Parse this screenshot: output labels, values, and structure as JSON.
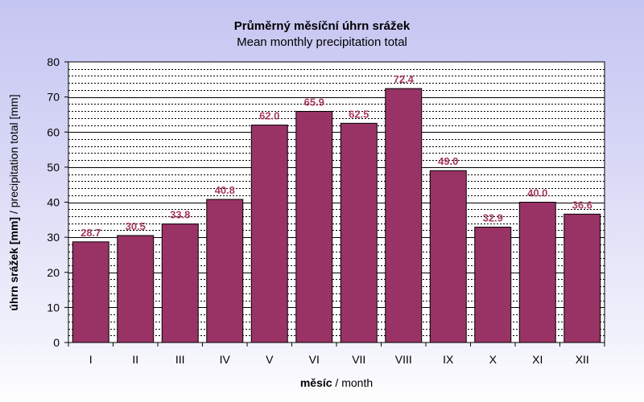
{
  "chart_data": {
    "type": "bar",
    "title": "Průměrný měsíční úhrn srážek",
    "subtitle": "Mean monthly precipitation total",
    "xlabel": {
      "bold": "měsíc",
      "normal": " / month"
    },
    "ylabel": {
      "bold": "úhrn srážek [mm]",
      "normal": " / precipitation total [mm]"
    },
    "categories": [
      "I",
      "II",
      "III",
      "IV",
      "V",
      "VI",
      "VII",
      "VIII",
      "IX",
      "X",
      "XI",
      "XII"
    ],
    "values": [
      28.7,
      30.5,
      33.8,
      40.8,
      62.0,
      65.9,
      62.5,
      72.4,
      49.0,
      32.9,
      40.0,
      36.6
    ],
    "data_labels": [
      "28.7",
      "30.5",
      "33.8",
      "40.8",
      "62.0",
      "65.9",
      "62.5",
      "72.4",
      "49.0",
      "32.9",
      "40.0",
      "36.6"
    ],
    "yticks": [
      "0",
      "10",
      "20",
      "30",
      "40",
      "50",
      "60",
      "70",
      "80"
    ],
    "ylim": [
      0,
      80
    ],
    "grid": true,
    "legend": false,
    "colors": {
      "bar": "#993366",
      "bar_edge": "#000000",
      "label": "#a8395f",
      "plot_bg": "#ffffff"
    }
  }
}
